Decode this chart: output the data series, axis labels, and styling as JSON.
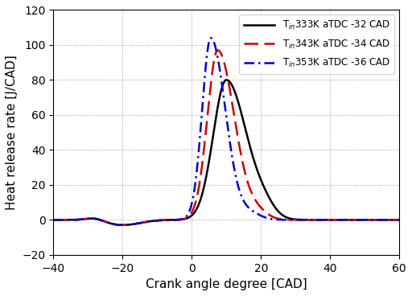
{
  "title": "",
  "xlabel": "Crank angle degree [CAD]",
  "ylabel": "Heat release rate [J/CAD]",
  "xlim": [
    -40,
    60
  ],
  "ylim": [
    -20,
    120
  ],
  "xticks": [
    -40,
    -20,
    0,
    20,
    40,
    60
  ],
  "yticks": [
    -20,
    0,
    20,
    40,
    60,
    80,
    100,
    120
  ],
  "legend": [
    {
      "label": "T$_{in}$333K aTDC -32 CAD",
      "color": "#000000",
      "linestyle": "-",
      "linewidth": 1.8
    },
    {
      "label": "T$_{in}$343K aTDC -34 CAD",
      "color": "#cc0000",
      "linestyle": "--",
      "linewidth": 1.8
    },
    {
      "label": "T$_{in}$353K aTDC -36 CAD",
      "color": "#0000cc",
      "linestyle": "-.",
      "linewidth": 1.8
    }
  ],
  "grid": true,
  "figsize": [
    5.12,
    3.68
  ],
  "dpi": 100
}
